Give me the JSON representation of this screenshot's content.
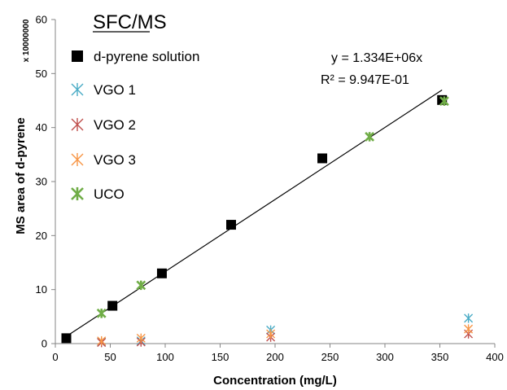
{
  "chart_data": {
    "type": "scatter",
    "title": "SFC/MS",
    "xlabel": "Concentration (mg/L)",
    "ylabel": "MS area of d-pyrene",
    "y_scale_label": "x 10000000",
    "xlim": [
      0,
      400
    ],
    "ylim": [
      0,
      60
    ],
    "x_ticks": [
      "0",
      "50",
      "100",
      "150",
      "200",
      "250",
      "300",
      "350",
      "400"
    ],
    "y_ticks": [
      "0",
      "10",
      "20",
      "30",
      "40",
      "50",
      "60"
    ],
    "grid": false,
    "legend_position": "top-left",
    "trendline": {
      "equation": "y = 1.334E+06x",
      "r_squared": "R² = 9.947E-01",
      "slope": 0.1334,
      "x_range": [
        10,
        352
      ]
    },
    "series": [
      {
        "name": "d-pyrene solution",
        "marker": "square",
        "color": "#000000",
        "points": [
          [
            10,
            1.0
          ],
          [
            52,
            7.0
          ],
          [
            97,
            13.0
          ],
          [
            160,
            22.0
          ],
          [
            243,
            34.3
          ],
          [
            352,
            45.1
          ]
        ]
      },
      {
        "name": "VGO 1",
        "marker": "star",
        "color": "#4BACC6",
        "points": [
          [
            42,
            0.3
          ],
          [
            78,
            0.5
          ],
          [
            196,
            2.5
          ],
          [
            376,
            4.7
          ]
        ]
      },
      {
        "name": "VGO 2",
        "marker": "star",
        "color": "#C0504D",
        "points": [
          [
            42,
            0.2
          ],
          [
            78,
            0.3
          ],
          [
            196,
            1.2
          ],
          [
            376,
            1.8
          ]
        ]
      },
      {
        "name": "VGO 3",
        "marker": "star",
        "color": "#F79646",
        "points": [
          [
            42,
            0.5
          ],
          [
            78,
            1.0
          ],
          [
            196,
            1.8
          ],
          [
            376,
            2.7
          ]
        ]
      },
      {
        "name": "UCO",
        "marker": "star",
        "color": "#70AD47",
        "points": [
          [
            42,
            5.6
          ],
          [
            78,
            10.8
          ],
          [
            286,
            38.3
          ],
          [
            354,
            44.9
          ]
        ]
      }
    ]
  }
}
